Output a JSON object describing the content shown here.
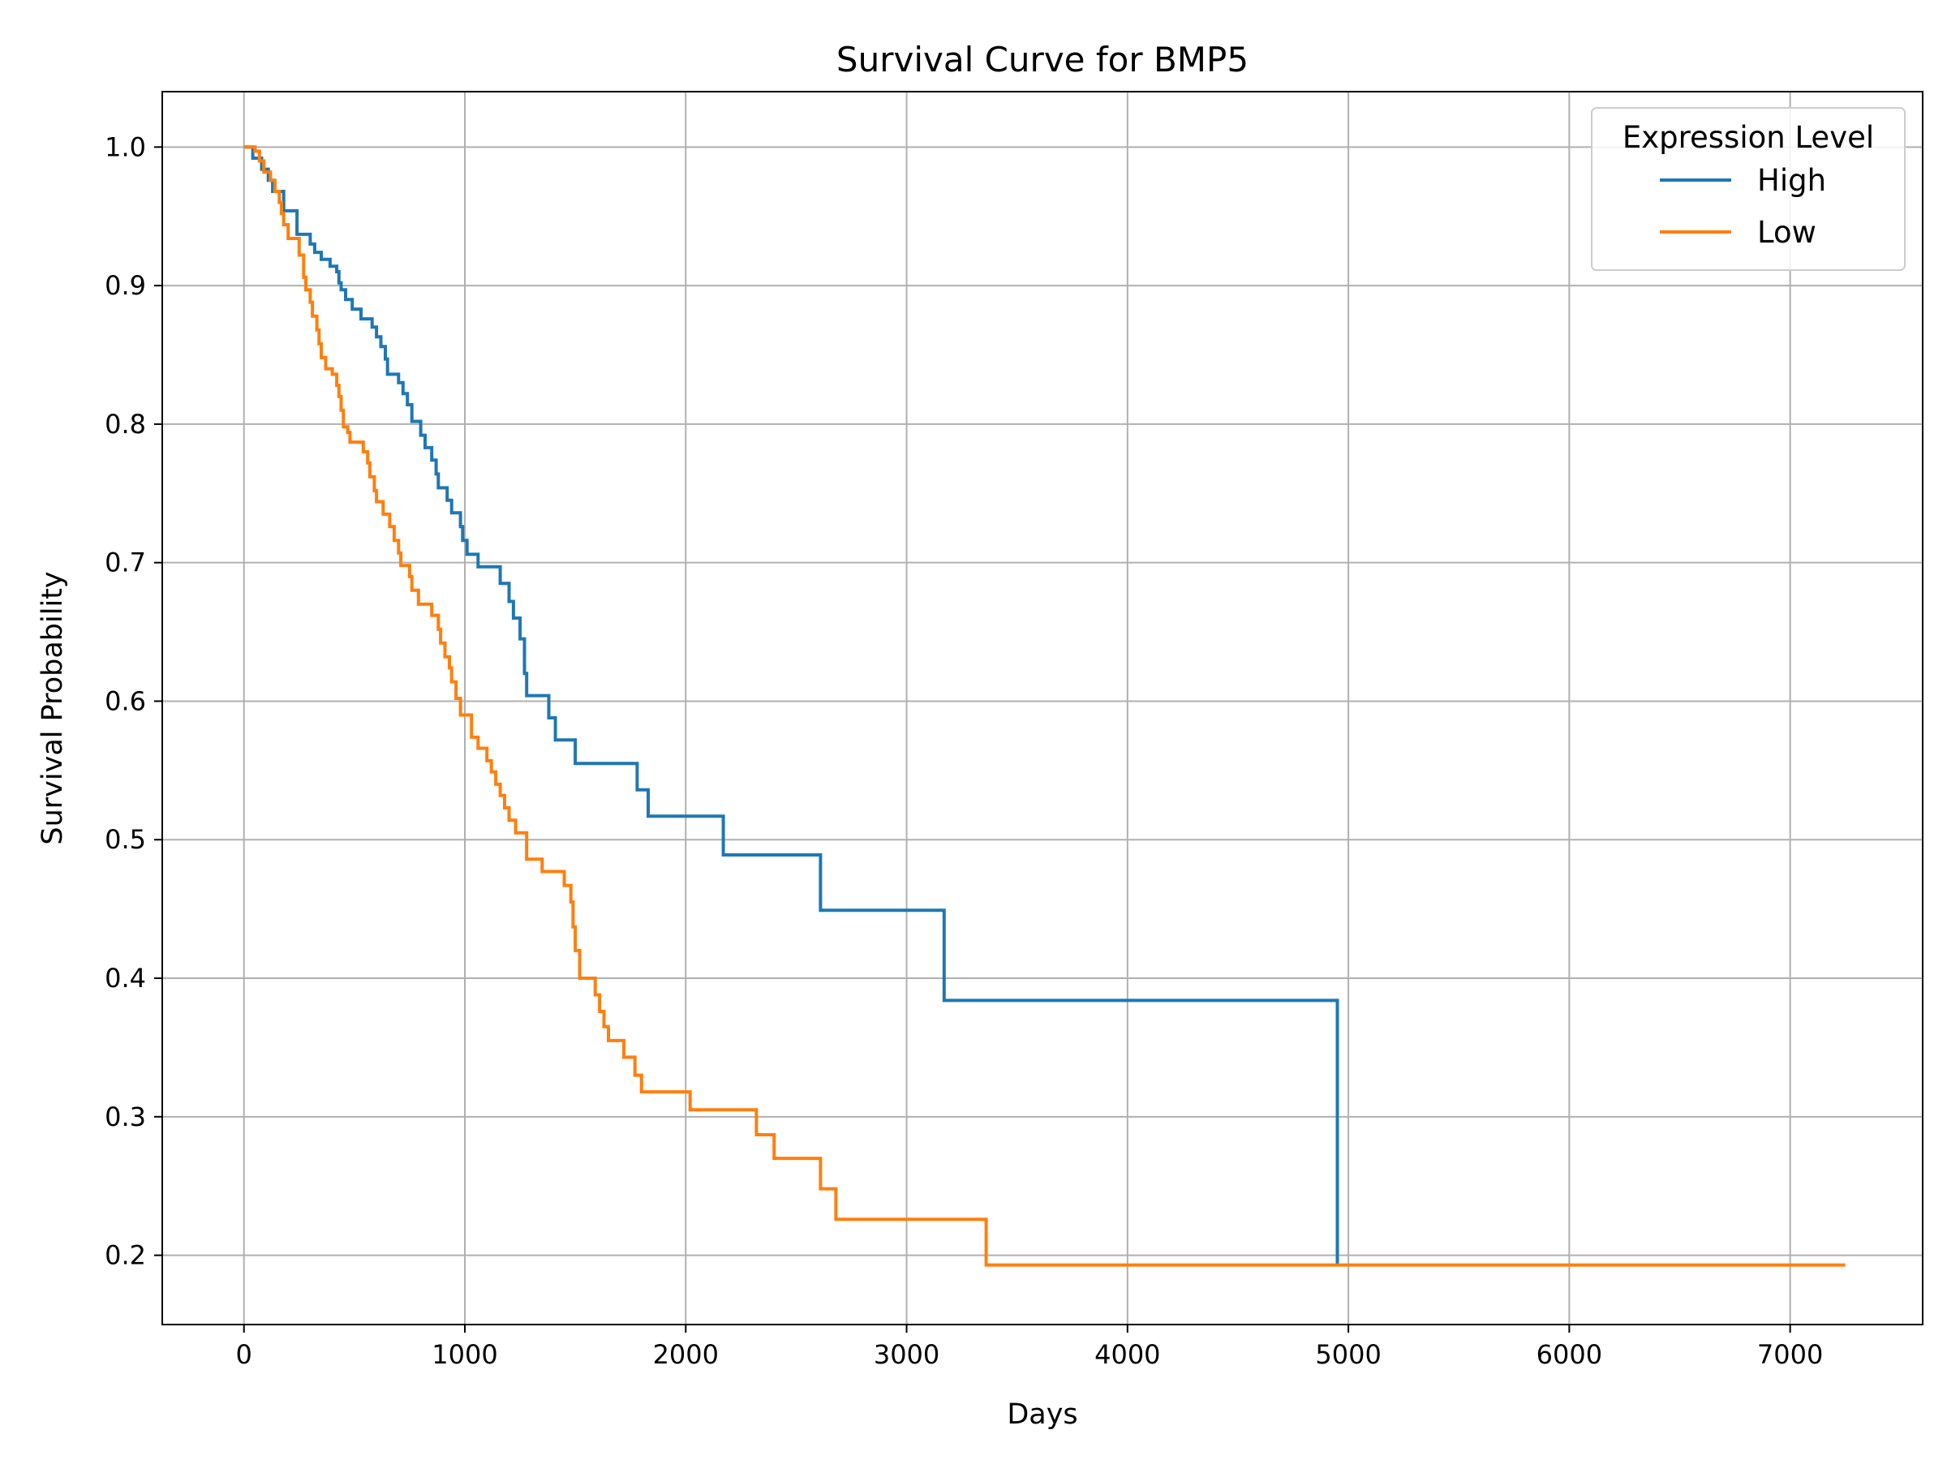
{
  "chart_data": {
    "type": "line",
    "title": "Survival Curve for BMP5",
    "xlabel": "Days",
    "ylabel": "Survival Probability",
    "xlim": [
      -370,
      7600
    ],
    "ylim": [
      0.15,
      1.04
    ],
    "xticks": [
      "0",
      "1000",
      "2000",
      "3000",
      "4000",
      "5000",
      "6000",
      "7000"
    ],
    "yticks": [
      "0.2",
      "0.3",
      "0.4",
      "0.5",
      "0.6",
      "0.7",
      "0.8",
      "0.9",
      "1.0"
    ],
    "grid": true,
    "legend": {
      "title": "Expression Level",
      "placement": "top-right"
    },
    "series": [
      {
        "name": "High",
        "color": "#1f77b4",
        "step": "post",
        "points": [
          [
            0,
            1.0
          ],
          [
            40,
            0.992
          ],
          [
            80,
            0.984
          ],
          [
            110,
            0.976
          ],
          [
            130,
            0.968
          ],
          [
            180,
            0.954
          ],
          [
            240,
            0.937
          ],
          [
            300,
            0.93
          ],
          [
            320,
            0.924
          ],
          [
            350,
            0.919
          ],
          [
            390,
            0.914
          ],
          [
            420,
            0.91
          ],
          [
            430,
            0.902
          ],
          [
            440,
            0.897
          ],
          [
            460,
            0.89
          ],
          [
            490,
            0.883
          ],
          [
            530,
            0.876
          ],
          [
            580,
            0.87
          ],
          [
            600,
            0.863
          ],
          [
            620,
            0.856
          ],
          [
            640,
            0.847
          ],
          [
            650,
            0.836
          ],
          [
            700,
            0.83
          ],
          [
            720,
            0.822
          ],
          [
            740,
            0.814
          ],
          [
            760,
            0.802
          ],
          [
            800,
            0.792
          ],
          [
            820,
            0.783
          ],
          [
            850,
            0.774
          ],
          [
            870,
            0.764
          ],
          [
            880,
            0.754
          ],
          [
            920,
            0.745
          ],
          [
            940,
            0.736
          ],
          [
            980,
            0.726
          ],
          [
            990,
            0.716
          ],
          [
            1010,
            0.706
          ],
          [
            1060,
            0.697
          ],
          [
            1160,
            0.685
          ],
          [
            1200,
            0.672
          ],
          [
            1220,
            0.66
          ],
          [
            1250,
            0.645
          ],
          [
            1270,
            0.62
          ],
          [
            1280,
            0.604
          ],
          [
            1380,
            0.588
          ],
          [
            1410,
            0.572
          ],
          [
            1500,
            0.555
          ],
          [
            1780,
            0.536
          ],
          [
            1830,
            0.517
          ],
          [
            2170,
            0.489
          ],
          [
            2610,
            0.449
          ],
          [
            3170,
            0.384
          ],
          [
            4950,
            0.193
          ]
        ]
      },
      {
        "name": "Low",
        "color": "#ff7f0e",
        "step": "post",
        "points": [
          [
            0,
            1.0
          ],
          [
            50,
            0.997
          ],
          [
            70,
            0.99
          ],
          [
            90,
            0.982
          ],
          [
            120,
            0.976
          ],
          [
            140,
            0.968
          ],
          [
            160,
            0.96
          ],
          [
            170,
            0.952
          ],
          [
            180,
            0.944
          ],
          [
            200,
            0.934
          ],
          [
            250,
            0.922
          ],
          [
            270,
            0.906
          ],
          [
            280,
            0.897
          ],
          [
            300,
            0.888
          ],
          [
            310,
            0.878
          ],
          [
            330,
            0.868
          ],
          [
            340,
            0.858
          ],
          [
            350,
            0.848
          ],
          [
            370,
            0.84
          ],
          [
            400,
            0.836
          ],
          [
            420,
            0.828
          ],
          [
            430,
            0.82
          ],
          [
            440,
            0.81
          ],
          [
            450,
            0.798
          ],
          [
            470,
            0.794
          ],
          [
            480,
            0.787
          ],
          [
            540,
            0.78
          ],
          [
            560,
            0.772
          ],
          [
            570,
            0.762
          ],
          [
            590,
            0.752
          ],
          [
            600,
            0.744
          ],
          [
            630,
            0.735
          ],
          [
            660,
            0.726
          ],
          [
            680,
            0.716
          ],
          [
            700,
            0.707
          ],
          [
            710,
            0.698
          ],
          [
            750,
            0.69
          ],
          [
            760,
            0.68
          ],
          [
            790,
            0.67
          ],
          [
            850,
            0.662
          ],
          [
            880,
            0.652
          ],
          [
            890,
            0.642
          ],
          [
            910,
            0.632
          ],
          [
            930,
            0.624
          ],
          [
            940,
            0.614
          ],
          [
            960,
            0.602
          ],
          [
            980,
            0.59
          ],
          [
            1030,
            0.574
          ],
          [
            1060,
            0.566
          ],
          [
            1100,
            0.557
          ],
          [
            1120,
            0.549
          ],
          [
            1140,
            0.54
          ],
          [
            1160,
            0.532
          ],
          [
            1180,
            0.523
          ],
          [
            1200,
            0.514
          ],
          [
            1230,
            0.505
          ],
          [
            1280,
            0.486
          ],
          [
            1350,
            0.477
          ],
          [
            1450,
            0.467
          ],
          [
            1480,
            0.455
          ],
          [
            1490,
            0.437
          ],
          [
            1500,
            0.42
          ],
          [
            1520,
            0.4
          ],
          [
            1590,
            0.388
          ],
          [
            1610,
            0.376
          ],
          [
            1630,
            0.365
          ],
          [
            1650,
            0.355
          ],
          [
            1720,
            0.343
          ],
          [
            1770,
            0.33
          ],
          [
            1800,
            0.318
          ],
          [
            2020,
            0.305
          ],
          [
            2320,
            0.287
          ],
          [
            2400,
            0.27
          ],
          [
            2610,
            0.248
          ],
          [
            2680,
            0.226
          ],
          [
            3360,
            0.193
          ],
          [
            7250,
            0.193
          ]
        ]
      }
    ]
  }
}
